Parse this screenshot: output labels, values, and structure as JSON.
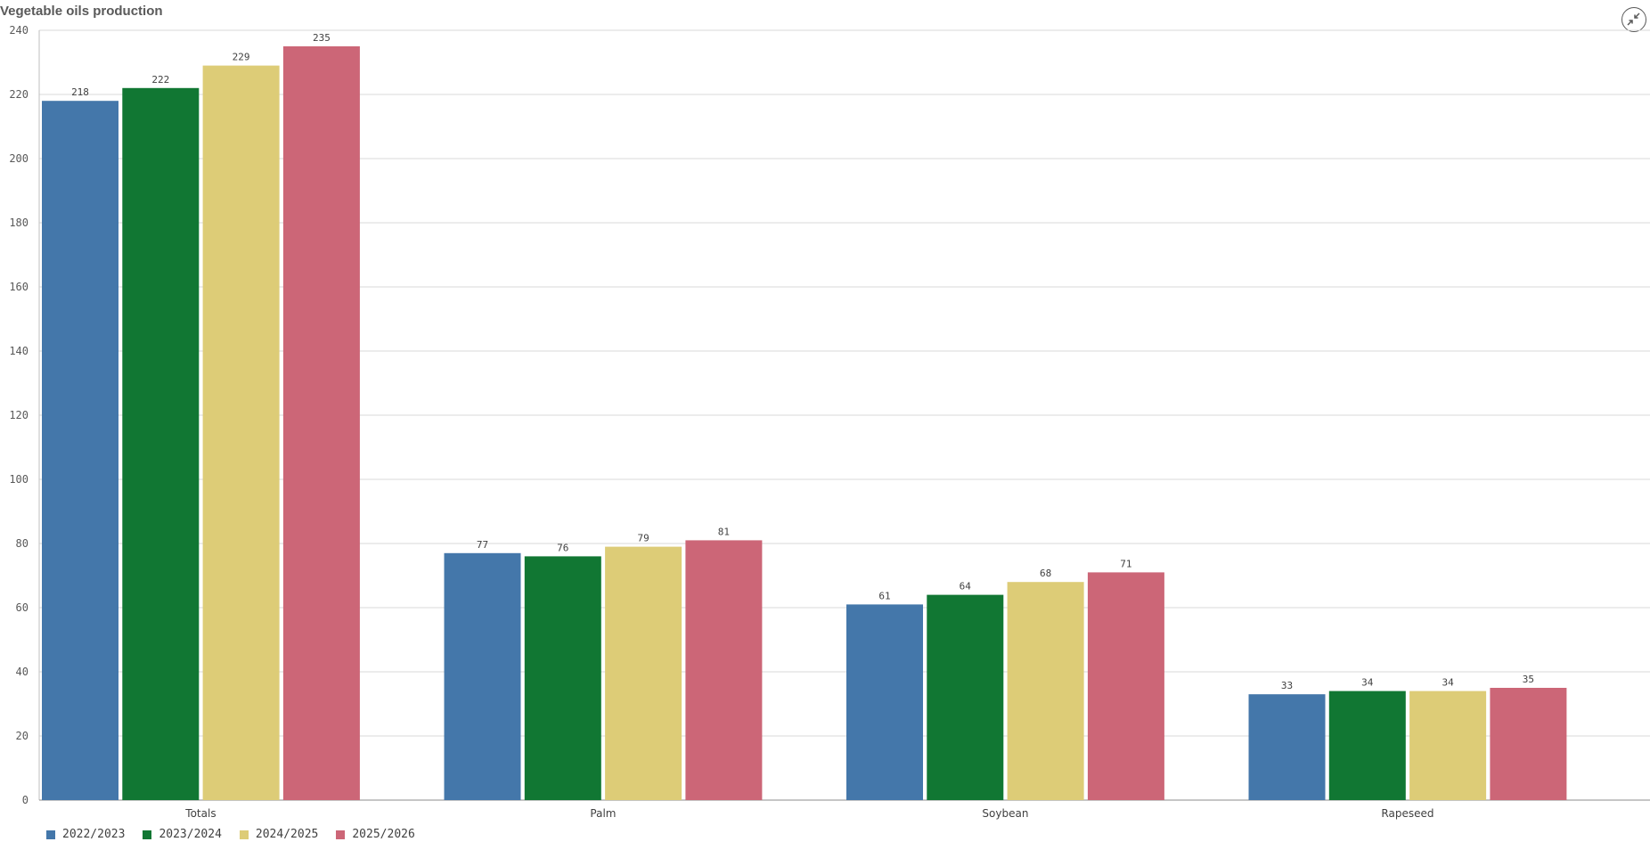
{
  "title": "Vegetable oils production",
  "expand_icon": "collapse-arrows-icon",
  "chart_data": {
    "type": "bar",
    "title": "Vegetable oils production",
    "xlabel": "",
    "ylabel": "",
    "categories": [
      "Totals",
      "Palm",
      "Soybean",
      "Rapeseed"
    ],
    "series": [
      {
        "name": "2022/2023",
        "color": "#4477aa",
        "values": [
          218,
          77,
          61,
          33
        ]
      },
      {
        "name": "2023/2024",
        "color": "#117733",
        "values": [
          222,
          76,
          64,
          34
        ]
      },
      {
        "name": "2024/2025",
        "color": "#ddcc77",
        "values": [
          229,
          79,
          68,
          34
        ]
      },
      {
        "name": "2025/2026",
        "color": "#cc6677",
        "values": [
          235,
          81,
          71,
          35
        ]
      }
    ],
    "yticks": [
      0,
      20,
      40,
      60,
      80,
      100,
      120,
      140,
      160,
      180,
      200,
      220,
      240
    ],
    "ylim": [
      0,
      240
    ],
    "grid": true,
    "legend_position": "bottom-left",
    "data_labels": true
  }
}
